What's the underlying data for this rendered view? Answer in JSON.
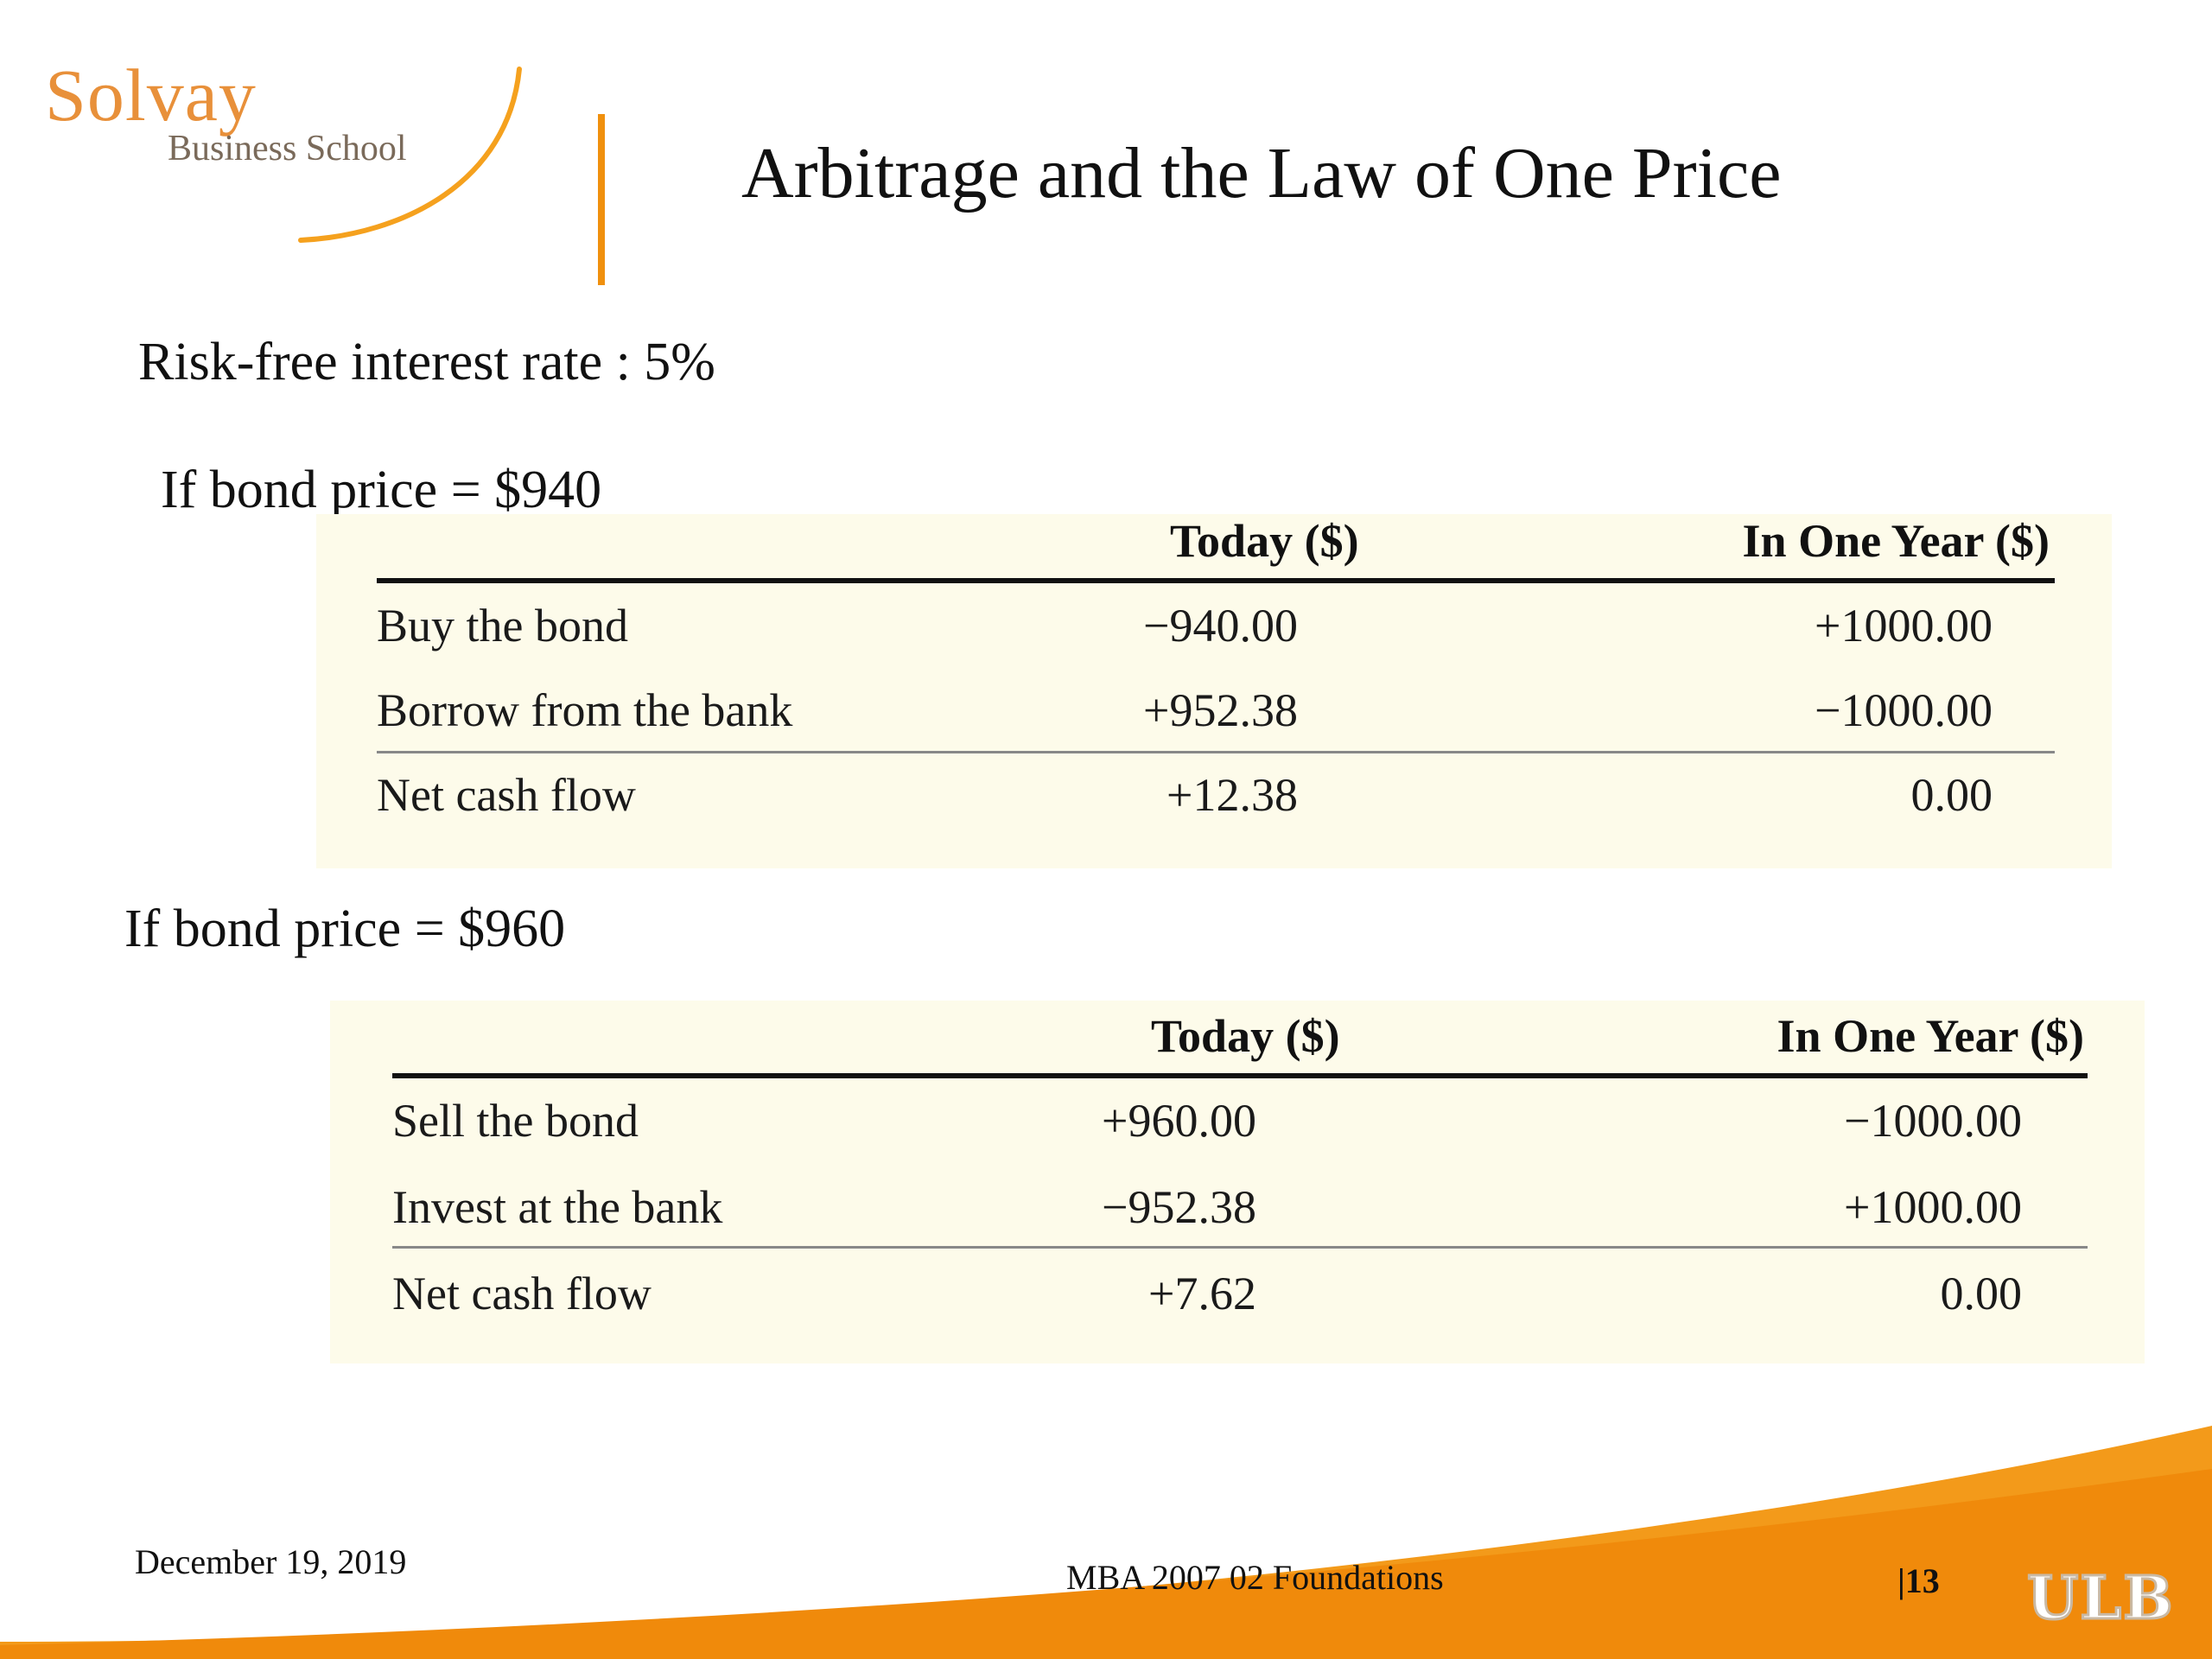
{
  "logo": {
    "name": "Solvay",
    "subtitle": "Business School"
  },
  "slide": {
    "title": "Arbitrage and the Law of One Price"
  },
  "intro": {
    "rate_text": "Risk-free interest rate : 5%"
  },
  "scenarios": [
    {
      "condition": "If bond price = $940",
      "table": {
        "headers": [
          "",
          "Today ($)",
          "In One Year ($)"
        ],
        "rows": [
          {
            "label": "Buy the bond",
            "today": "−940.00",
            "one_year": "+1000.00"
          },
          {
            "label": "Borrow from the bank",
            "today": "+952.38",
            "one_year": "−1000.00"
          },
          {
            "label": "Net cash flow",
            "today": "+12.38",
            "one_year": "0.00"
          }
        ]
      }
    },
    {
      "condition": "If bond price = $960",
      "table": {
        "headers": [
          "",
          "Today ($)",
          "In One Year ($)"
        ],
        "rows": [
          {
            "label": "Sell the bond",
            "today": "+960.00",
            "one_year": "−1000.00"
          },
          {
            "label": "Invest at the bank",
            "today": "−952.38",
            "one_year": "+1000.00"
          },
          {
            "label": "Net cash flow",
            "today": "+7.62",
            "one_year": "0.00"
          }
        ]
      }
    }
  ],
  "footer": {
    "date": "December 19, 2019",
    "course": "MBA 2007 02 Foundations",
    "page": "|13",
    "ulb": "ULB"
  },
  "colors": {
    "accent": "#f0900e",
    "table_bg": "#fdfbea"
  }
}
